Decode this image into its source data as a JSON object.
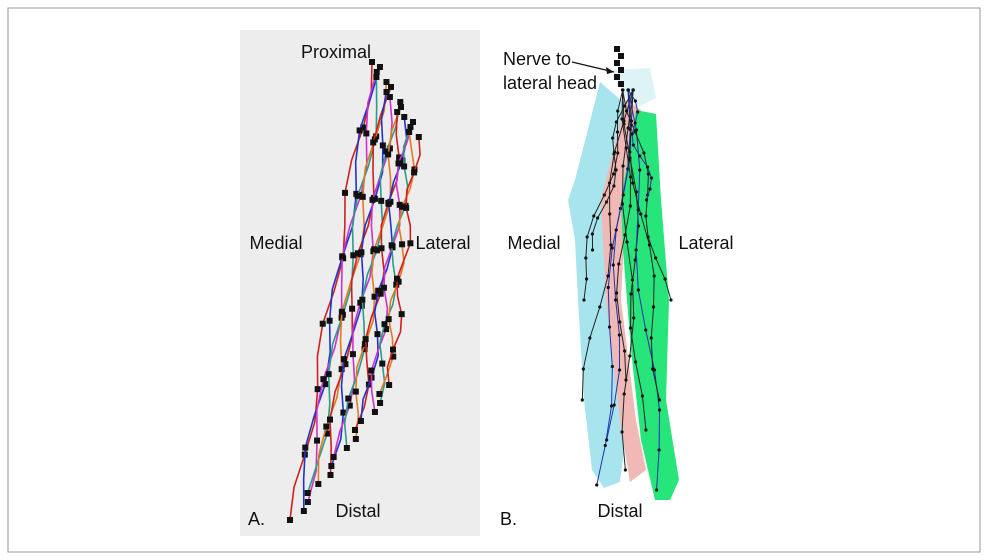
{
  "panel_a": {
    "label": "A.",
    "top": "Proximal",
    "left": "Medial",
    "right": "Lateral",
    "bottom": "Distal"
  },
  "panel_b": {
    "label": "B.",
    "annotation": [
      "Nerve to",
      "lateral head"
    ],
    "left": "Medial",
    "right": "Lateral",
    "bottom": "Distal"
  }
}
